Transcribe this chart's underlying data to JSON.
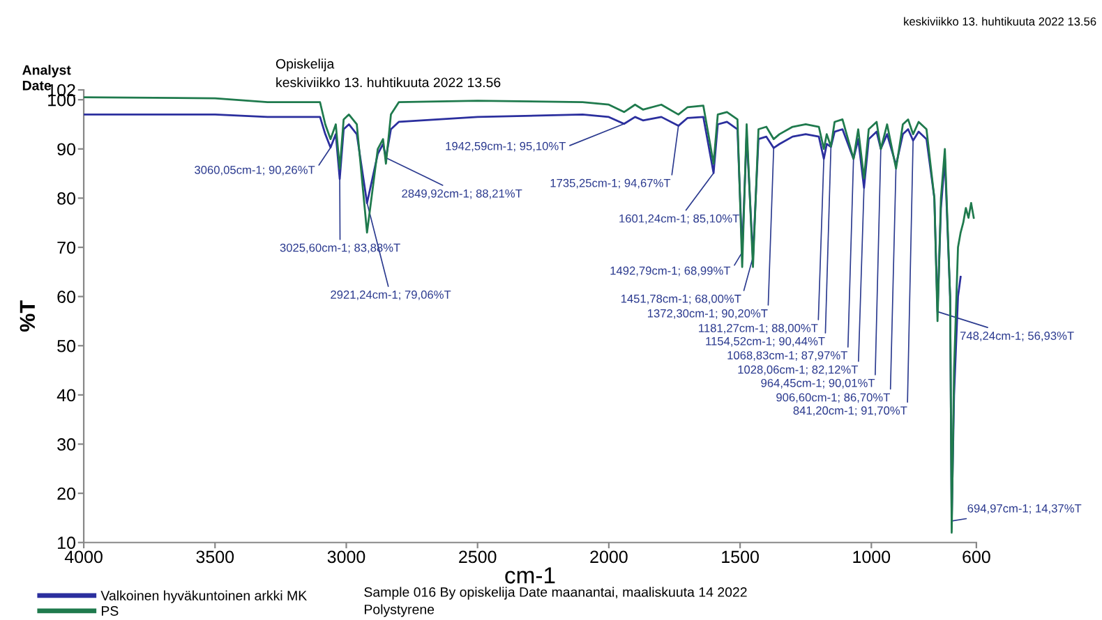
{
  "chart_data": {
    "type": "line",
    "xlabel": "cm-1",
    "ylabel": "%T",
    "xlim": [
      4000,
      600
    ],
    "xticks": [
      4000,
      3500,
      3000,
      2500,
      2000,
      1500,
      1000,
      600
    ],
    "ylim": [
      10,
      102
    ],
    "yticks": [
      10,
      20,
      30,
      40,
      50,
      60,
      70,
      80,
      90,
      100,
      102
    ],
    "grid": false,
    "legend": "bottom left",
    "marker": "none",
    "line_style": "solid",
    "x": [
      4000,
      3500,
      3300,
      3100,
      3080,
      3060,
      3040,
      3025,
      3010,
      2990,
      2960,
      2921,
      2880,
      2860,
      2849,
      2830,
      2800,
      2500,
      2100,
      2000,
      1942,
      1900,
      1870,
      1800,
      1735,
      1700,
      1640,
      1601,
      1585,
      1550,
      1510,
      1492,
      1475,
      1451,
      1430,
      1400,
      1372,
      1350,
      1300,
      1250,
      1200,
      1181,
      1170,
      1154,
      1140,
      1110,
      1068,
      1050,
      1028,
      1010,
      980,
      964,
      940,
      906,
      880,
      860,
      841,
      820,
      790,
      760,
      748,
      735,
      720,
      700,
      694,
      685,
      670,
      660,
      650,
      640,
      630,
      620,
      610
    ],
    "series": [
      {
        "name": "Valkoinen hyväkuntoinen arkki MK",
        "color": "#2b2f9e",
        "values": [
          97,
          97,
          96.5,
          96.5,
          93,
          90.3,
          93,
          83.9,
          94,
          95,
          93,
          79,
          89,
          91,
          88.2,
          94,
          95.5,
          96.5,
          97,
          96.5,
          95.1,
          96.5,
          95.8,
          96.5,
          94.7,
          96.3,
          96.5,
          85.1,
          95,
          95.5,
          94,
          69,
          93,
          68,
          92,
          92.5,
          90.2,
          91,
          92.5,
          93,
          92.5,
          88,
          91,
          90.4,
          93.5,
          94,
          88,
          92,
          82.1,
          92,
          93.5,
          90,
          93,
          86.7,
          93,
          94,
          91.7,
          93.5,
          92,
          80,
          56.9,
          78,
          88,
          60,
          14.4,
          40,
          60,
          64,
          null,
          null,
          null,
          null,
          null
        ]
      },
      {
        "name": "PS",
        "color": "#1f7a4d",
        "values": [
          100.5,
          100.3,
          99.5,
          99.5,
          95,
          92,
          95,
          86,
          96,
          97,
          95,
          73,
          90,
          92,
          87,
          97,
          99.5,
          99.8,
          99.5,
          99,
          97.5,
          99,
          98,
          99,
          97,
          98.5,
          98.8,
          87,
          97,
          97.5,
          96,
          66,
          95,
          66,
          94,
          94.5,
          92,
          93,
          94.5,
          95,
          94.5,
          90,
          93,
          90.5,
          95.5,
          96,
          88,
          94,
          84,
          94,
          95.5,
          90,
          95,
          86,
          95,
          96,
          93,
          95.5,
          94,
          80,
          55,
          80,
          90,
          60,
          12,
          45,
          70,
          73,
          75,
          78,
          76,
          79,
          76
        ]
      }
    ],
    "annotations": [
      "Analyst",
      "Opiskelija",
      "Date",
      "keskiviikko 13. huhtikuuta 2022 13.56",
      "keskiviikko 13. huhtikuuta 2022 13.56",
      "Sample 016 By opiskelija Date maanantai, maaliskuuta 14 2022",
      "Polystyrene",
      {
        "text": "3060,05cm-1; 90,26%T",
        "x": 3060,
        "y": 90.26
      },
      {
        "text": "2849,92cm-1; 88,21%T",
        "x": 2849,
        "y": 88.21
      },
      {
        "text": "3025,60cm-1; 83,88%T",
        "x": 3025,
        "y": 83.88
      },
      {
        "text": "2921,24cm-1; 79,06%T",
        "x": 2921,
        "y": 79.06
      },
      {
        "text": "1735,25cm-1; 94,67%T",
        "x": 1735,
        "y": 94.67
      },
      {
        "text": "1942,59cm-1; 95,10%T",
        "x": 1942,
        "y": 95.1
      },
      {
        "text": "1372,30cm-1; 90,20%T",
        "x": 1372,
        "y": 90.2
      },
      {
        "text": "1601,24cm-1; 85,10%T",
        "x": 1601,
        "y": 85.1
      },
      {
        "text": "841,20cm-1; 91,70%T",
        "x": 841,
        "y": 91.7
      },
      {
        "text": "964,45cm-1; 90,01%T",
        "x": 964,
        "y": 90.01
      },
      {
        "text": "1181,27cm-1; 88,00%T",
        "x": 1181,
        "y": 88
      },
      {
        "text": "906,60cm-1; 86,70%T",
        "x": 906,
        "y": 86.7
      },
      {
        "text": "1068,83cm-1; 87,97%T",
        "x": 1068,
        "y": 87.97
      },
      {
        "text": "1154,52cm-1; 90,44%T",
        "x": 1154,
        "y": 90.44
      },
      {
        "text": "1028,06cm-1; 82,12%T",
        "x": 1028,
        "y": 82.12
      },
      {
        "text": "1492,79cm-1; 68,99%T",
        "x": 1492,
        "y": 68.99
      },
      {
        "text": "1451,78cm-1; 68,00%T",
        "x": 1451,
        "y": 68
      },
      {
        "text": "748,24cm-1; 56,93%T",
        "x": 748,
        "y": 56.93
      },
      {
        "text": "694,97cm-1; 14,37%T",
        "x": 694,
        "y": 14.37
      }
    ]
  }
}
